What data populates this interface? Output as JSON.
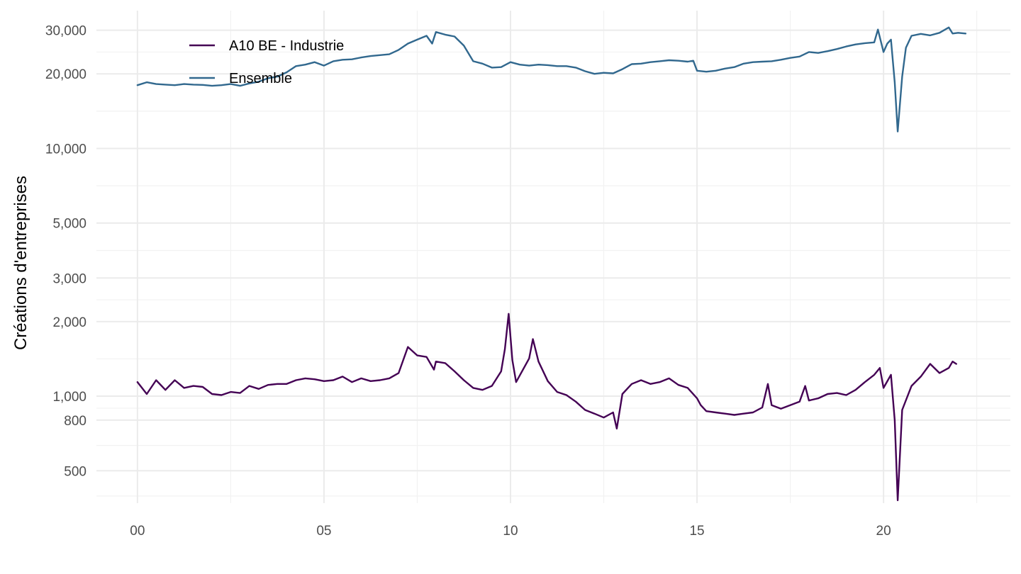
{
  "chart_data": {
    "type": "line",
    "ylabel": "Créations d'entreprises",
    "xlabel": "",
    "y_scale": "log",
    "ylim": [
      370,
      36000
    ],
    "xlim": [
      -1.1,
      23.4
    ],
    "x_ticks": [
      {
        "value": 0,
        "label": "00"
      },
      {
        "value": 5,
        "label": "05"
      },
      {
        "value": 10,
        "label": "10"
      },
      {
        "value": 15,
        "label": "15"
      },
      {
        "value": 20,
        "label": "20"
      }
    ],
    "y_ticks": [
      {
        "value": 500,
        "label": "500"
      },
      {
        "value": 800,
        "label": "800"
      },
      {
        "value": 1000,
        "label": "1,000"
      },
      {
        "value": 2000,
        "label": "2,000"
      },
      {
        "value": 3000,
        "label": "3,000"
      },
      {
        "value": 5000,
        "label": "5,000"
      },
      {
        "value": 10000,
        "label": "10,000"
      },
      {
        "value": 20000,
        "label": "20,000"
      },
      {
        "value": 30000,
        "label": "30,000"
      }
    ],
    "grid": true,
    "legend_position": "top-left",
    "series": [
      {
        "name": "A10 BE - Industrie",
        "color": "#440154",
        "points": [
          [
            0.0,
            1140
          ],
          [
            0.25,
            1020
          ],
          [
            0.5,
            1160
          ],
          [
            0.75,
            1060
          ],
          [
            1.0,
            1160
          ],
          [
            1.25,
            1080
          ],
          [
            1.5,
            1100
          ],
          [
            1.75,
            1090
          ],
          [
            2.0,
            1020
          ],
          [
            2.25,
            1010
          ],
          [
            2.5,
            1040
          ],
          [
            2.75,
            1030
          ],
          [
            3.0,
            1100
          ],
          [
            3.25,
            1070
          ],
          [
            3.5,
            1110
          ],
          [
            3.75,
            1120
          ],
          [
            4.0,
            1120
          ],
          [
            4.25,
            1160
          ],
          [
            4.5,
            1180
          ],
          [
            4.75,
            1170
          ],
          [
            5.0,
            1150
          ],
          [
            5.25,
            1160
          ],
          [
            5.5,
            1200
          ],
          [
            5.75,
            1140
          ],
          [
            6.0,
            1180
          ],
          [
            6.25,
            1150
          ],
          [
            6.5,
            1160
          ],
          [
            6.75,
            1180
          ],
          [
            7.0,
            1240
          ],
          [
            7.25,
            1580
          ],
          [
            7.5,
            1460
          ],
          [
            7.75,
            1440
          ],
          [
            7.95,
            1280
          ],
          [
            8.0,
            1380
          ],
          [
            8.25,
            1360
          ],
          [
            8.5,
            1260
          ],
          [
            8.75,
            1160
          ],
          [
            9.0,
            1080
          ],
          [
            9.25,
            1060
          ],
          [
            9.5,
            1100
          ],
          [
            9.75,
            1260
          ],
          [
            9.85,
            1550
          ],
          [
            9.95,
            2150
          ],
          [
            10.05,
            1400
          ],
          [
            10.15,
            1140
          ],
          [
            10.5,
            1420
          ],
          [
            10.6,
            1700
          ],
          [
            10.75,
            1380
          ],
          [
            11.0,
            1150
          ],
          [
            11.25,
            1040
          ],
          [
            11.5,
            1010
          ],
          [
            11.75,
            950
          ],
          [
            12.0,
            880
          ],
          [
            12.25,
            850
          ],
          [
            12.5,
            820
          ],
          [
            12.75,
            860
          ],
          [
            12.85,
            740
          ],
          [
            13.0,
            1020
          ],
          [
            13.25,
            1120
          ],
          [
            13.5,
            1160
          ],
          [
            13.75,
            1120
          ],
          [
            14.0,
            1140
          ],
          [
            14.25,
            1180
          ],
          [
            14.5,
            1110
          ],
          [
            14.75,
            1080
          ],
          [
            15.0,
            980
          ],
          [
            15.1,
            920
          ],
          [
            15.25,
            870
          ],
          [
            15.5,
            860
          ],
          [
            15.75,
            850
          ],
          [
            16.0,
            840
          ],
          [
            16.25,
            850
          ],
          [
            16.5,
            860
          ],
          [
            16.75,
            900
          ],
          [
            16.9,
            1120
          ],
          [
            17.0,
            920
          ],
          [
            17.25,
            890
          ],
          [
            17.5,
            920
          ],
          [
            17.75,
            950
          ],
          [
            17.9,
            1100
          ],
          [
            18.0,
            960
          ],
          [
            18.25,
            980
          ],
          [
            18.5,
            1020
          ],
          [
            18.75,
            1030
          ],
          [
            19.0,
            1010
          ],
          [
            19.25,
            1060
          ],
          [
            19.5,
            1140
          ],
          [
            19.75,
            1220
          ],
          [
            19.9,
            1300
          ],
          [
            20.0,
            1080
          ],
          [
            20.2,
            1220
          ],
          [
            20.3,
            800
          ],
          [
            20.38,
            380
          ],
          [
            20.5,
            880
          ],
          [
            20.75,
            1100
          ],
          [
            21.0,
            1200
          ],
          [
            21.25,
            1350
          ],
          [
            21.5,
            1240
          ],
          [
            21.75,
            1300
          ],
          [
            21.85,
            1380
          ],
          [
            21.95,
            1350
          ]
        ]
      },
      {
        "name": "Ensemble",
        "color": "#31688e",
        "points": [
          [
            0.0,
            18000
          ],
          [
            0.25,
            18500
          ],
          [
            0.5,
            18200
          ],
          [
            0.75,
            18100
          ],
          [
            1.0,
            18000
          ],
          [
            1.25,
            18200
          ],
          [
            1.5,
            18100
          ],
          [
            1.75,
            18050
          ],
          [
            2.0,
            17900
          ],
          [
            2.25,
            18000
          ],
          [
            2.5,
            18200
          ],
          [
            2.75,
            17900
          ],
          [
            3.0,
            18300
          ],
          [
            3.25,
            18600
          ],
          [
            3.5,
            19200
          ],
          [
            3.75,
            19500
          ],
          [
            4.0,
            20300
          ],
          [
            4.25,
            21500
          ],
          [
            4.5,
            21800
          ],
          [
            4.75,
            22300
          ],
          [
            5.0,
            21600
          ],
          [
            5.25,
            22500
          ],
          [
            5.5,
            22800
          ],
          [
            5.75,
            22900
          ],
          [
            6.0,
            23300
          ],
          [
            6.25,
            23600
          ],
          [
            6.5,
            23800
          ],
          [
            6.75,
            24000
          ],
          [
            7.0,
            25000
          ],
          [
            7.25,
            26500
          ],
          [
            7.5,
            27500
          ],
          [
            7.75,
            28500
          ],
          [
            7.9,
            26500
          ],
          [
            8.0,
            29500
          ],
          [
            8.25,
            28800
          ],
          [
            8.5,
            28300
          ],
          [
            8.75,
            26000
          ],
          [
            9.0,
            22500
          ],
          [
            9.25,
            22000
          ],
          [
            9.5,
            21200
          ],
          [
            9.75,
            21300
          ],
          [
            10.0,
            22300
          ],
          [
            10.25,
            21800
          ],
          [
            10.5,
            21600
          ],
          [
            10.75,
            21800
          ],
          [
            11.0,
            21700
          ],
          [
            11.25,
            21500
          ],
          [
            11.5,
            21500
          ],
          [
            11.75,
            21200
          ],
          [
            12.0,
            20500
          ],
          [
            12.25,
            20000
          ],
          [
            12.5,
            20200
          ],
          [
            12.75,
            20100
          ],
          [
            13.0,
            20900
          ],
          [
            13.25,
            21900
          ],
          [
            13.5,
            22000
          ],
          [
            13.75,
            22300
          ],
          [
            14.0,
            22500
          ],
          [
            14.25,
            22700
          ],
          [
            14.5,
            22600
          ],
          [
            14.75,
            22400
          ],
          [
            14.9,
            22600
          ],
          [
            15.0,
            20600
          ],
          [
            15.25,
            20400
          ],
          [
            15.5,
            20600
          ],
          [
            15.75,
            21000
          ],
          [
            16.0,
            21300
          ],
          [
            16.25,
            22000
          ],
          [
            16.5,
            22300
          ],
          [
            16.75,
            22400
          ],
          [
            17.0,
            22500
          ],
          [
            17.25,
            22800
          ],
          [
            17.5,
            23200
          ],
          [
            17.75,
            23500
          ],
          [
            18.0,
            24500
          ],
          [
            18.25,
            24300
          ],
          [
            18.5,
            24700
          ],
          [
            18.75,
            25200
          ],
          [
            19.0,
            25800
          ],
          [
            19.25,
            26300
          ],
          [
            19.5,
            26600
          ],
          [
            19.75,
            26800
          ],
          [
            19.85,
            30200
          ],
          [
            20.0,
            24500
          ],
          [
            20.1,
            26500
          ],
          [
            20.2,
            27500
          ],
          [
            20.3,
            18500
          ],
          [
            20.38,
            11700
          ],
          [
            20.5,
            19500
          ],
          [
            20.6,
            25500
          ],
          [
            20.75,
            28500
          ],
          [
            21.0,
            29000
          ],
          [
            21.25,
            28600
          ],
          [
            21.5,
            29300
          ],
          [
            21.75,
            30800
          ],
          [
            21.85,
            29100
          ],
          [
            22.0,
            29300
          ],
          [
            22.2,
            29100
          ]
        ]
      }
    ]
  }
}
